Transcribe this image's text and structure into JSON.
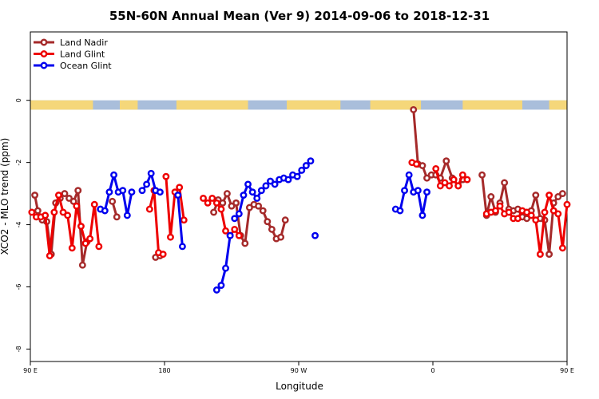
{
  "chart_data": {
    "type": "line",
    "title": "55N-60N Annual Mean (Ver 9)   2014-09-06 to 2018-12-31",
    "xlabel": "Longitude",
    "ylabel": "XCO2 - MLO trend (ppm)",
    "xlim": [
      90,
      450
    ],
    "ylim": [
      -8.4,
      2.2
    ],
    "x_ticks": [
      {
        "value": 90,
        "label": "90 E"
      },
      {
        "value": 180,
        "label": "180"
      },
      {
        "value": 270,
        "label": "90 W"
      },
      {
        "value": 360,
        "label": "0"
      },
      {
        "value": 450,
        "label": "90 E"
      },
      {
        "value": 540,
        "label": "180"
      }
    ],
    "y_ticks": [
      {
        "value": 0,
        "label": "0"
      },
      {
        "value": -2,
        "label": "-2"
      },
      {
        "value": -4,
        "label": "-4"
      },
      {
        "value": -6,
        "label": "-6"
      },
      {
        "value": -8,
        "label": "-8"
      }
    ],
    "land_strip": {
      "y_top": 0,
      "y_bottom": -0.3,
      "ocean_color": "#a9bedb",
      "land_color": "#f5d77a"
    },
    "legend_position": "top-left",
    "series": [
      {
        "name": "Land Nadir",
        "color": "#a52a2a",
        "segments": [
          [
            [
              93,
              -3.05
            ],
            [
              95,
              -3.55
            ],
            [
              98,
              -3.85
            ],
            [
              101,
              -3.9
            ],
            [
              104,
              -4.95
            ],
            [
              107,
              -3.3
            ],
            [
              110,
              -3.15
            ],
            [
              113,
              -3.0
            ],
            [
              116,
              -3.15
            ],
            [
              119,
              -3.25
            ],
            [
              122,
              -2.9
            ],
            [
              125,
              -5.3
            ],
            [
              128,
              -4.55
            ]
          ],
          [
            [
              145,
              -3.25
            ],
            [
              148,
              -3.75
            ]
          ],
          [
            [
              174,
              -5.05
            ],
            [
              177,
              -5.0
            ]
          ],
          [
            [
              213,
              -3.6
            ],
            [
              216,
              -3.2
            ],
            [
              219,
              -3.3
            ],
            [
              222,
              -3.0
            ],
            [
              225,
              -3.4
            ],
            [
              228,
              -3.3
            ],
            [
              231,
              -4.35
            ],
            [
              234,
              -4.6
            ],
            [
              237,
              -3.45
            ],
            [
              240,
              -3.35
            ],
            [
              243,
              -3.4
            ],
            [
              246,
              -3.55
            ],
            [
              249,
              -3.9
            ],
            [
              252,
              -4.15
            ],
            [
              255,
              -4.45
            ],
            [
              258,
              -4.4
            ],
            [
              261,
              -3.85
            ]
          ],
          [
            [
              347,
              -0.3
            ],
            [
              350,
              -2.05
            ],
            [
              353,
              -2.1
            ],
            [
              356,
              -2.5
            ],
            [
              359,
              -2.4
            ],
            [
              362,
              -2.4
            ],
            [
              365,
              -2.5
            ],
            [
              369,
              -1.95
            ],
            [
              373,
              -2.5
            ],
            [
              377,
              -2.75
            ],
            [
              380,
              -2.55
            ]
          ],
          [
            [
              393,
              -2.4
            ],
            [
              396,
              -3.7
            ],
            [
              399,
              -3.1
            ],
            [
              402,
              -3.6
            ],
            [
              405,
              -3.3
            ],
            [
              408,
              -2.65
            ],
            [
              411,
              -3.5
            ],
            [
              414,
              -3.55
            ],
            [
              417,
              -3.5
            ],
            [
              420,
              -3.75
            ],
            [
              423,
              -3.8
            ],
            [
              426,
              -3.55
            ],
            [
              429,
              -3.05
            ],
            [
              432,
              -3.8
            ],
            [
              435,
              -3.85
            ],
            [
              438,
              -4.95
            ],
            [
              441,
              -3.3
            ],
            [
              444,
              -3.1
            ],
            [
              447,
              -3.0
            ]
          ],
          [
            [
              452,
              -3.15
            ],
            [
              455,
              -3.25
            ],
            [
              458,
              -2.9
            ],
            [
              461,
              -5.3
            ],
            [
              464,
              -4.55
            ]
          ],
          [
            [
              471,
              -3.75
            ],
            [
              474,
              -3.8
            ]
          ]
        ]
      },
      {
        "name": "Land Glint",
        "color": "#ee0000",
        "segments": [
          [
            [
              91,
              -3.6
            ],
            [
              94,
              -3.75
            ],
            [
              97,
              -3.75
            ],
            [
              100,
              -3.7
            ],
            [
              103,
              -5.0
            ],
            [
              106,
              -3.6
            ],
            [
              109,
              -3.05
            ],
            [
              112,
              -3.6
            ],
            [
              115,
              -3.7
            ],
            [
              118,
              -4.75
            ],
            [
              121,
              -3.4
            ],
            [
              124,
              -4.05
            ],
            [
              127,
              -4.6
            ],
            [
              130,
              -4.45
            ],
            [
              133,
              -3.35
            ],
            [
              136,
              -4.7
            ]
          ],
          [
            [
              170,
              -3.5
            ],
            [
              173,
              -2.9
            ],
            [
              176,
              -4.9
            ],
            [
              179,
              -4.95
            ]
          ],
          [
            [
              181,
              -2.45
            ],
            [
              184,
              -4.4
            ],
            [
              187,
              -2.95
            ],
            [
              190,
              -2.8
            ],
            [
              193,
              -3.85
            ]
          ],
          [
            [
              206,
              -3.15
            ],
            [
              209,
              -3.3
            ],
            [
              212,
              -3.15
            ],
            [
              215,
              -3.3
            ],
            [
              218,
              -3.5
            ],
            [
              221,
              -4.2
            ],
            [
              224,
              -4.35
            ],
            [
              227,
              -4.15
            ],
            [
              230,
              -4.35
            ]
          ],
          [
            [
              346,
              -2.0
            ],
            [
              349,
              -2.05
            ]
          ],
          [
            [
              362,
              -2.2
            ],
            [
              365,
              -2.75
            ],
            [
              368,
              -2.65
            ],
            [
              371,
              -2.75
            ],
            [
              374,
              -2.55
            ],
            [
              377,
              -2.75
            ],
            [
              380,
              -2.4
            ],
            [
              383,
              -2.55
            ]
          ],
          [
            [
              396,
              -3.65
            ],
            [
              399,
              -3.6
            ],
            [
              402,
              -3.55
            ],
            [
              405,
              -3.4
            ],
            [
              408,
              -3.65
            ],
            [
              411,
              -3.6
            ],
            [
              414,
              -3.8
            ],
            [
              417,
              -3.8
            ],
            [
              420,
              -3.55
            ],
            [
              423,
              -3.6
            ],
            [
              426,
              -3.7
            ],
            [
              429,
              -3.85
            ],
            [
              432,
              -4.95
            ],
            [
              435,
              -3.6
            ],
            [
              438,
              -3.05
            ],
            [
              441,
              -3.55
            ],
            [
              444,
              -3.65
            ],
            [
              447,
              -4.75
            ],
            [
              450,
              -3.35
            ]
          ],
          [
            [
              463,
              -3.4
            ],
            [
              466,
              -4.7
            ]
          ]
        ]
      },
      {
        "name": "Ocean Glint",
        "color": "#0000ee",
        "segments": [
          [
            [
              137,
              -3.5
            ],
            [
              140,
              -3.55
            ],
            [
              143,
              -2.95
            ],
            [
              146,
              -2.4
            ],
            [
              149,
              -2.95
            ],
            [
              152,
              -2.9
            ],
            [
              155,
              -3.7
            ],
            [
              158,
              -2.95
            ]
          ],
          [
            [
              165,
              -2.9
            ],
            [
              168,
              -2.7
            ],
            [
              171,
              -2.35
            ],
            [
              174,
              -2.9
            ],
            [
              177,
              -2.95
            ]
          ],
          [
            [
              189,
              -3.05
            ],
            [
              192,
              -4.7
            ]
          ],
          [
            [
              215,
              -6.1
            ],
            [
              218,
              -5.95
            ],
            [
              221,
              -5.4
            ],
            [
              224,
              -4.35
            ]
          ],
          [
            [
              227,
              -3.8
            ],
            [
              230,
              -3.65
            ],
            [
              233,
              -3.05
            ],
            [
              236,
              -2.7
            ],
            [
              239,
              -2.95
            ],
            [
              242,
              -3.15
            ],
            [
              245,
              -2.9
            ],
            [
              248,
              -2.75
            ],
            [
              251,
              -2.6
            ],
            [
              254,
              -2.7
            ],
            [
              257,
              -2.55
            ],
            [
              260,
              -2.5
            ],
            [
              263,
              -2.55
            ],
            [
              266,
              -2.4
            ],
            [
              269,
              -2.45
            ],
            [
              272,
              -2.25
            ],
            [
              275,
              -2.1
            ],
            [
              278,
              -1.95
            ]
          ],
          [
            [
              281,
              -4.35
            ]
          ],
          [
            [
              335,
              -3.5
            ],
            [
              338,
              -3.55
            ],
            [
              341,
              -2.9
            ],
            [
              344,
              -2.4
            ],
            [
              347,
              -2.95
            ],
            [
              350,
              -2.9
            ],
            [
              353,
              -3.7
            ],
            [
              356,
              -2.95
            ]
          ]
        ]
      }
    ]
  }
}
